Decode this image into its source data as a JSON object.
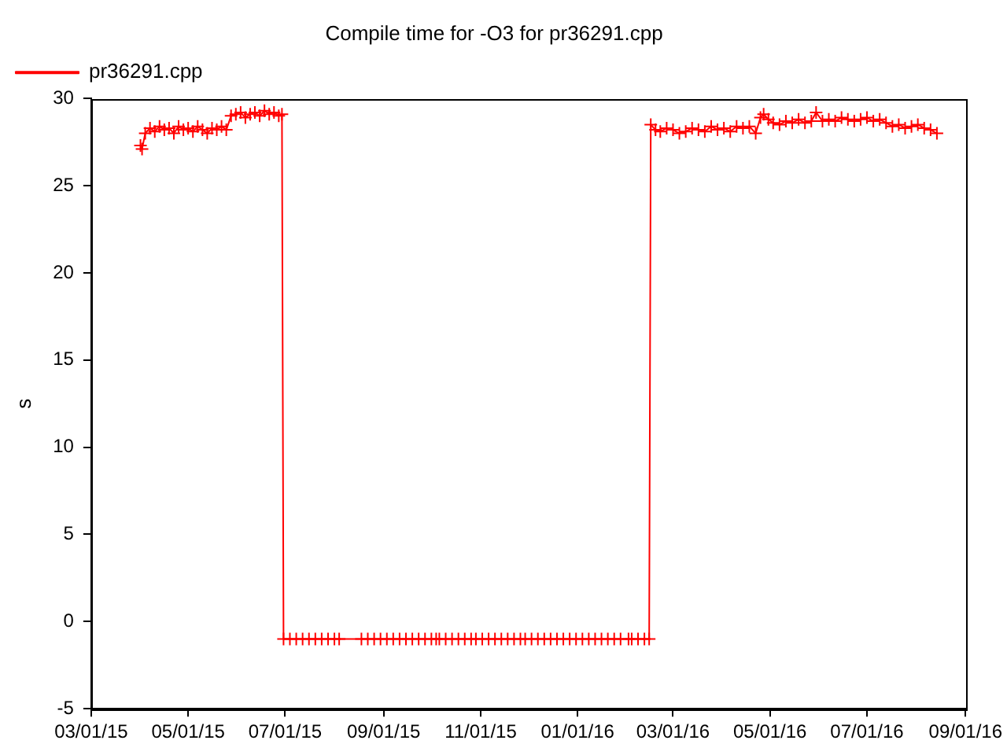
{
  "chart_data": {
    "type": "line",
    "title": "Compile time for -O3 for pr36291.cpp",
    "ylabel": "s",
    "xlim": [
      "2015-03-01",
      "2016-09-01"
    ],
    "xticks": [
      {
        "value": "2015-03-01",
        "label": "03/01/15"
      },
      {
        "value": "2015-05-01",
        "label": "05/01/15"
      },
      {
        "value": "2015-07-01",
        "label": "07/01/15"
      },
      {
        "value": "2015-09-01",
        "label": "09/01/15"
      },
      {
        "value": "2015-11-01",
        "label": "11/01/15"
      },
      {
        "value": "2016-01-01",
        "label": "01/01/16"
      },
      {
        "value": "2016-03-01",
        "label": "03/01/16"
      },
      {
        "value": "2016-05-01",
        "label": "05/01/16"
      },
      {
        "value": "2016-07-01",
        "label": "07/01/16"
      },
      {
        "value": "2016-09-01",
        "label": "09/01/16"
      }
    ],
    "ylim": [
      -5,
      30
    ],
    "yticks": [
      -5,
      0,
      5,
      10,
      15,
      20,
      25,
      30
    ],
    "grid": false,
    "legend": "top left",
    "marker": "cross",
    "line_style": "solid",
    "x": [
      "2015-04-01",
      "2015-04-02",
      "2015-04-04",
      "2015-04-07",
      "2015-04-10",
      "2015-04-13",
      "2015-04-16",
      "2015-04-19",
      "2015-04-22",
      "2015-04-25",
      "2015-04-28",
      "2015-05-01",
      "2015-05-04",
      "2015-05-07",
      "2015-05-10",
      "2015-05-13",
      "2015-05-16",
      "2015-05-19",
      "2015-05-22",
      "2015-05-25",
      "2015-05-28",
      "2015-05-31",
      "2015-06-03",
      "2015-06-06",
      "2015-06-09",
      "2015-06-12",
      "2015-06-15",
      "2015-06-18",
      "2015-06-21",
      "2015-06-24",
      "2015-06-27",
      "2015-06-29",
      "2015-06-30",
      "2015-07-04",
      "2015-07-08",
      "2015-07-12",
      "2015-07-16",
      "2015-07-20",
      "2015-07-24",
      "2015-07-28",
      "2015-08-01",
      "2015-08-04",
      "2015-08-18",
      "2015-08-22",
      "2015-08-26",
      "2015-08-30",
      "2015-09-03",
      "2015-09-07",
      "2015-09-11",
      "2015-09-15",
      "2015-09-19",
      "2015-09-23",
      "2015-09-27",
      "2015-10-01",
      "2015-10-04",
      "2015-10-06",
      "2015-10-10",
      "2015-10-14",
      "2015-10-18",
      "2015-10-22",
      "2015-10-26",
      "2015-10-29",
      "2015-11-02",
      "2015-11-06",
      "2015-11-10",
      "2015-11-14",
      "2015-11-18",
      "2015-11-22",
      "2015-11-26",
      "2015-11-29",
      "2015-12-03",
      "2015-12-07",
      "2015-12-11",
      "2015-12-15",
      "2015-12-19",
      "2015-12-23",
      "2015-12-27",
      "2015-12-31",
      "2016-01-04",
      "2016-01-08",
      "2016-01-12",
      "2016-01-16",
      "2016-01-20",
      "2016-01-24",
      "2016-01-28",
      "2016-02-02",
      "2016-02-04",
      "2016-02-08",
      "2016-02-12",
      "2016-02-15",
      "2016-02-16",
      "2016-02-19",
      "2016-02-22",
      "2016-02-26",
      "2016-03-01",
      "2016-03-05",
      "2016-03-09",
      "2016-03-13",
      "2016-03-17",
      "2016-03-21",
      "2016-03-25",
      "2016-03-29",
      "2016-04-02",
      "2016-04-06",
      "2016-04-10",
      "2016-04-14",
      "2016-04-18",
      "2016-04-22",
      "2016-04-25",
      "2016-04-27",
      "2016-04-30",
      "2016-05-03",
      "2016-05-07",
      "2016-05-11",
      "2016-05-15",
      "2016-05-19",
      "2016-05-23",
      "2016-05-27",
      "2016-05-30",
      "2016-06-03",
      "2016-06-07",
      "2016-06-11",
      "2016-06-15",
      "2016-06-19",
      "2016-06-23",
      "2016-06-27",
      "2016-07-01",
      "2016-07-05",
      "2016-07-09",
      "2016-07-13",
      "2016-07-17",
      "2016-07-21",
      "2016-07-25",
      "2016-07-29",
      "2016-08-02",
      "2016-08-06",
      "2016-08-10",
      "2016-08-14"
    ],
    "series": [
      {
        "name": "pr36291.cpp",
        "color": "#ff0000",
        "values": [
          27.3,
          27.1,
          28.0,
          28.3,
          28.1,
          28.4,
          28.2,
          28.3,
          28.0,
          28.4,
          28.2,
          28.3,
          28.1,
          28.4,
          28.2,
          28.0,
          28.3,
          28.2,
          28.4,
          28.2,
          29.0,
          29.1,
          29.2,
          28.9,
          29.1,
          29.2,
          29.0,
          29.3,
          29.1,
          29.2,
          29.0,
          29.1,
          -1,
          -1,
          -1,
          -1,
          -1,
          -1,
          -1,
          -1,
          -1,
          -1,
          -1,
          -1,
          -1,
          -1,
          -1,
          -1,
          -1,
          -1,
          -1,
          -1,
          -1,
          -1,
          -1,
          -1,
          -1,
          -1,
          -1,
          -1,
          -1,
          -1,
          -1,
          -1,
          -1,
          -1,
          -1,
          -1,
          -1,
          -1,
          -1,
          -1,
          -1,
          -1,
          -1,
          -1,
          -1,
          -1,
          -1,
          -1,
          -1,
          -1,
          -1,
          -1,
          -1,
          -1,
          -1,
          -1,
          -1,
          -1,
          28.5,
          28.2,
          28.1,
          28.3,
          28.2,
          28.0,
          28.1,
          28.3,
          28.2,
          28.1,
          28.4,
          28.2,
          28.3,
          28.1,
          28.4,
          28.3,
          28.4,
          28.0,
          28.9,
          29.1,
          28.8,
          28.6,
          28.5,
          28.7,
          28.6,
          28.8,
          28.6,
          28.7,
          29.2,
          28.7,
          28.8,
          28.7,
          28.9,
          28.8,
          28.7,
          28.8,
          28.9,
          28.7,
          28.8,
          28.6,
          28.4,
          28.5,
          28.3,
          28.4,
          28.5,
          28.3,
          28.2,
          28.0
        ]
      }
    ]
  }
}
